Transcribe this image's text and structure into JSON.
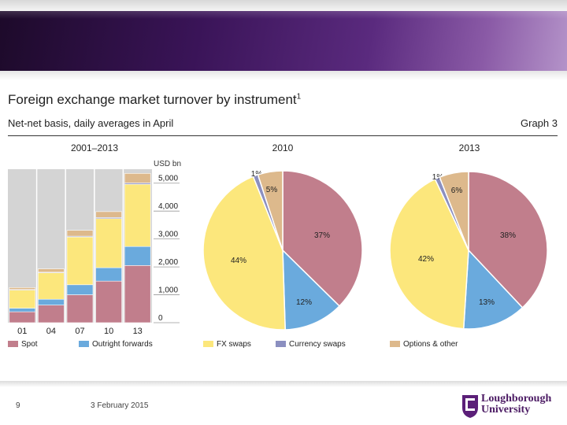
{
  "slide": {
    "title": "Foreign exchange market turnover by instrument",
    "title_sup": "1",
    "subtitle": "Net-net basis, daily averages in April",
    "graph_label": "Graph 3",
    "slide_number": "9",
    "date": "3 February 2015",
    "logo_line1": "Loughborough",
    "logo_line2": "University"
  },
  "colors": {
    "spot": "#c17e8c",
    "outright_forwards": "#6aaadd",
    "fx_swaps": "#fce77c",
    "currency_swaps": "#8b8fc0",
    "options_other": "#ddb98c",
    "plot_bg": "#d4d4d4"
  },
  "chart_data": [
    {
      "type": "bar",
      "stacked": true,
      "title": "2001–2013",
      "ylabel": "USD bn",
      "ylim": [
        0,
        5500
      ],
      "yticks": [
        0,
        1000,
        2000,
        3000,
        4000,
        5000
      ],
      "ytick_labels": [
        "0",
        "1,000",
        "2,000",
        "3,000",
        "4,000",
        "5,000"
      ],
      "categories": [
        "01",
        "04",
        "07",
        "10",
        "13"
      ],
      "series": [
        {
          "name": "Spot",
          "key": "spot",
          "values": [
            390,
            630,
            1000,
            1490,
            2050
          ]
        },
        {
          "name": "Outright forwards",
          "key": "outright_forwards",
          "values": [
            130,
            210,
            360,
            480,
            680
          ]
        },
        {
          "name": "FX swaps",
          "key": "fx_swaps",
          "values": [
            660,
            950,
            1710,
            1760,
            2230
          ]
        },
        {
          "name": "Currency swaps",
          "key": "currency_swaps",
          "values": [
            10,
            20,
            30,
            40,
            50
          ]
        },
        {
          "name": "Options & other",
          "key": "options_other",
          "values": [
            70,
            120,
            210,
            210,
            340
          ]
        }
      ]
    },
    {
      "type": "pie",
      "title": "2010",
      "slices": [
        {
          "name": "Spot",
          "key": "spot",
          "value": 37,
          "label": "37%"
        },
        {
          "name": "Outright forwards",
          "key": "outright_forwards",
          "value": 12,
          "label": "12%"
        },
        {
          "name": "FX swaps",
          "key": "fx_swaps",
          "value": 44,
          "label": "44%"
        },
        {
          "name": "Currency swaps",
          "key": "currency_swaps",
          "value": 1,
          "label": "1%"
        },
        {
          "name": "Options & other",
          "key": "options_other",
          "value": 5,
          "label": "5%"
        }
      ]
    },
    {
      "type": "pie",
      "title": "2013",
      "slices": [
        {
          "name": "Spot",
          "key": "spot",
          "value": 38,
          "label": "38%"
        },
        {
          "name": "Outright forwards",
          "key": "outright_forwards",
          "value": 13,
          "label": "13%"
        },
        {
          "name": "FX swaps",
          "key": "fx_swaps",
          "value": 42,
          "label": "42%"
        },
        {
          "name": "Currency swaps",
          "key": "currency_swaps",
          "value": 1,
          "label": "1%"
        },
        {
          "name": "Options & other",
          "key": "options_other",
          "value": 6,
          "label": "6%"
        }
      ]
    }
  ],
  "legend": [
    {
      "key": "spot",
      "label": "Spot"
    },
    {
      "key": "outright_forwards",
      "label": "Outright forwards"
    },
    {
      "key": "fx_swaps",
      "label": "FX swaps"
    },
    {
      "key": "currency_swaps",
      "label": "Currency swaps"
    },
    {
      "key": "options_other",
      "label": "Options & other"
    }
  ]
}
